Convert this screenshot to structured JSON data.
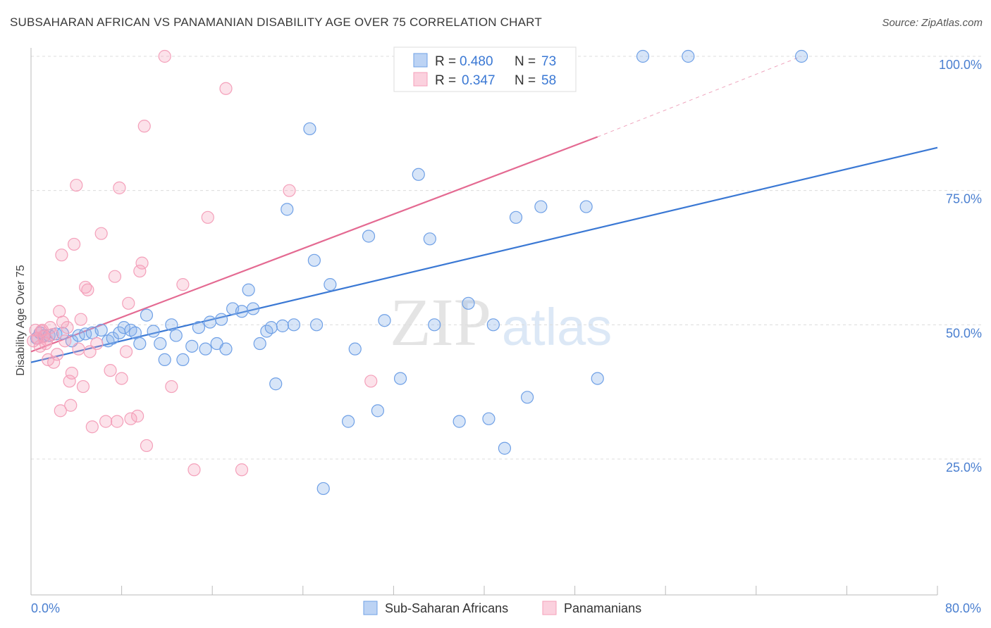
{
  "title": "SUBSAHARAN AFRICAN VS PANAMANIAN DISABILITY AGE OVER 75 CORRELATION CHART",
  "source": "Source: ZipAtlas.com",
  "watermark": {
    "zip": "ZIP",
    "atlas": "atlas"
  },
  "legend": {
    "r_label": "R =",
    "n_label": "N =",
    "series": [
      {
        "r": "0.480",
        "n": "73"
      },
      {
        "r": "0.347",
        "n": "58"
      }
    ]
  },
  "chart_data": {
    "type": "scatter",
    "ylabel": "Disability Age Over 75",
    "xlim": [
      0,
      80
    ],
    "ylim": [
      0,
      105
    ],
    "x_tick_labels": [
      {
        "value": 0,
        "label": "0.0%"
      },
      {
        "value": 80,
        "label": "80.0%"
      }
    ],
    "y_tick_labels": [
      {
        "value": 25,
        "label": "25.0%"
      },
      {
        "value": 50,
        "label": "50.0%"
      },
      {
        "value": 75,
        "label": "75.0%"
      },
      {
        "value": 100,
        "label": "100.0%"
      }
    ],
    "grid": "horizontal dashed",
    "series": [
      {
        "name": "Sub-Saharan Africans",
        "color": "#6fa0e6",
        "line_color": "#3a78d4",
        "trend": {
          "x0": 0,
          "y0": 43,
          "x1": 80,
          "y1": 83
        },
        "points": [
          [
            0.5,
            47.5
          ],
          [
            0.8,
            48.5
          ],
          [
            1.2,
            48
          ],
          [
            1.6,
            48
          ],
          [
            2.2,
            48.3
          ],
          [
            2.8,
            48.4
          ],
          [
            3.6,
            47
          ],
          [
            4.2,
            48
          ],
          [
            4.8,
            48.3
          ],
          [
            5.4,
            48.5
          ],
          [
            6.2,
            49
          ],
          [
            6.8,
            47
          ],
          [
            7.2,
            47.5
          ],
          [
            7.8,
            48.5
          ],
          [
            8.2,
            49.5
          ],
          [
            8.8,
            49
          ],
          [
            9.2,
            48.5
          ],
          [
            9.6,
            46.5
          ],
          [
            10.2,
            51.8
          ],
          [
            10.8,
            48.8
          ],
          [
            11.4,
            46.5
          ],
          [
            11.8,
            43.5
          ],
          [
            12.4,
            50
          ],
          [
            12.8,
            48
          ],
          [
            13.4,
            43.5
          ],
          [
            14.2,
            46
          ],
          [
            14.8,
            49.5
          ],
          [
            15.4,
            45.5
          ],
          [
            15.8,
            50.5
          ],
          [
            16.4,
            46.5
          ],
          [
            16.8,
            51
          ],
          [
            17.2,
            45.5
          ],
          [
            17.8,
            53
          ],
          [
            18.6,
            52.5
          ],
          [
            19.2,
            56.5
          ],
          [
            19.6,
            53
          ],
          [
            20.2,
            46.5
          ],
          [
            20.8,
            48.8
          ],
          [
            21.2,
            49.5
          ],
          [
            21.6,
            39
          ],
          [
            22.2,
            49.8
          ],
          [
            22.6,
            71.5
          ],
          [
            23.2,
            50
          ],
          [
            24.6,
            86.5
          ],
          [
            25.0,
            62
          ],
          [
            25.2,
            50
          ],
          [
            26.4,
            57.5
          ],
          [
            28.6,
            45.5
          ],
          [
            29.8,
            66.5
          ],
          [
            31.2,
            50.8
          ],
          [
            32.6,
            40
          ],
          [
            33.0,
            100
          ],
          [
            34.2,
            78
          ],
          [
            35.2,
            66
          ],
          [
            35.6,
            50
          ],
          [
            37.8,
            32
          ],
          [
            38.6,
            54
          ],
          [
            40.8,
            50
          ],
          [
            42.8,
            70
          ],
          [
            43.0,
            100
          ],
          [
            45.0,
            72
          ],
          [
            47.0,
            100
          ],
          [
            49.0,
            72
          ],
          [
            54.0,
            100
          ],
          [
            58.0,
            100
          ],
          [
            68.0,
            100
          ],
          [
            25.8,
            19.5
          ],
          [
            28.0,
            32
          ],
          [
            30.6,
            34
          ],
          [
            40.4,
            32.5
          ],
          [
            41.8,
            27
          ],
          [
            43.8,
            36.5
          ],
          [
            50.0,
            40
          ]
        ]
      },
      {
        "name": "Panamanians",
        "color": "#f4a0ba",
        "line_color": "#e46a92",
        "trend": {
          "x0": 0,
          "y0": 45,
          "x1": 50,
          "y1": 85
        },
        "trend_dashed": {
          "x0": 50,
          "y0": 85,
          "x1": 68,
          "y1": 100
        },
        "points": [
          [
            0.2,
            47
          ],
          [
            0.4,
            49
          ],
          [
            0.6,
            47.5
          ],
          [
            0.8,
            46
          ],
          [
            1.0,
            49
          ],
          [
            1.3,
            46.5
          ],
          [
            1.5,
            43.5
          ],
          [
            1.7,
            49.5
          ],
          [
            2.0,
            43
          ],
          [
            2.3,
            44.5
          ],
          [
            2.5,
            52.5
          ],
          [
            2.6,
            34
          ],
          [
            2.7,
            63
          ],
          [
            2.8,
            50.5
          ],
          [
            3.0,
            47
          ],
          [
            3.2,
            49.5
          ],
          [
            3.4,
            39.5
          ],
          [
            3.5,
            35
          ],
          [
            3.6,
            41
          ],
          [
            3.8,
            65
          ],
          [
            4.0,
            76
          ],
          [
            4.2,
            45.5
          ],
          [
            4.4,
            51
          ],
          [
            4.6,
            38.5
          ],
          [
            4.8,
            57
          ],
          [
            5.0,
            56.5
          ],
          [
            5.2,
            45
          ],
          [
            5.4,
            31
          ],
          [
            5.8,
            46.5
          ],
          [
            6.2,
            67
          ],
          [
            6.6,
            32
          ],
          [
            7.0,
            41.5
          ],
          [
            7.4,
            59
          ],
          [
            7.6,
            32
          ],
          [
            7.8,
            75.5
          ],
          [
            8.0,
            40
          ],
          [
            8.4,
            45
          ],
          [
            8.6,
            54
          ],
          [
            8.8,
            32.5
          ],
          [
            9.4,
            33
          ],
          [
            9.6,
            60
          ],
          [
            9.8,
            61.5
          ],
          [
            10.0,
            87
          ],
          [
            10.2,
            27.5
          ],
          [
            11.8,
            100
          ],
          [
            12.4,
            38.5
          ],
          [
            13.4,
            57.5
          ],
          [
            14.4,
            23
          ],
          [
            15.6,
            70
          ],
          [
            17.2,
            94
          ],
          [
            18.6,
            23
          ],
          [
            22.8,
            75
          ],
          [
            30.0,
            39.5
          ],
          [
            40.6,
            100
          ],
          [
            1.1,
            47.8
          ],
          [
            1.9,
            48.2
          ],
          [
            0.9,
            48.8
          ],
          [
            1.4,
            47.2
          ]
        ]
      }
    ]
  }
}
